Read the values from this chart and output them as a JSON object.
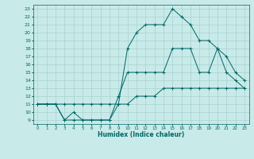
{
  "title": "",
  "xlabel": "Humidex (Indice chaleur)",
  "background_color": "#c8eae8",
  "grid_color": "#a0cccc",
  "line_color": "#006666",
  "xlim": [
    -0.5,
    23.5
  ],
  "ylim": [
    8.5,
    23.5
  ],
  "yticks": [
    9,
    10,
    11,
    12,
    13,
    14,
    15,
    16,
    17,
    18,
    19,
    20,
    21,
    22,
    23
  ],
  "xticks": [
    0,
    1,
    2,
    3,
    4,
    5,
    6,
    7,
    8,
    9,
    10,
    11,
    12,
    13,
    14,
    15,
    16,
    17,
    18,
    19,
    20,
    21,
    22,
    23
  ],
  "line_high_x": [
    0,
    1,
    2,
    3,
    4,
    5,
    6,
    7,
    8,
    9,
    10,
    11,
    12,
    13,
    14,
    15,
    16,
    17,
    18,
    19,
    20,
    21,
    22,
    23
  ],
  "line_high_y": [
    11,
    11,
    11,
    9,
    10,
    9,
    9,
    9,
    9,
    11,
    18,
    20,
    21,
    21,
    21,
    23,
    22,
    21,
    19,
    19,
    18,
    17,
    15,
    14
  ],
  "line_mid_x": [
    0,
    1,
    2,
    3,
    4,
    5,
    6,
    7,
    8,
    9,
    10,
    11,
    12,
    13,
    14,
    15,
    16,
    17,
    18,
    19,
    20,
    21,
    22,
    23
  ],
  "line_mid_y": [
    11,
    11,
    11,
    9,
    9,
    9,
    9,
    9,
    9,
    12,
    15,
    15,
    15,
    15,
    15,
    18,
    18,
    18,
    15,
    15,
    18,
    15,
    14,
    13
  ],
  "line_low_x": [
    0,
    1,
    2,
    3,
    4,
    5,
    6,
    7,
    8,
    9,
    10,
    11,
    12,
    13,
    14,
    15,
    16,
    17,
    18,
    19,
    20,
    21,
    22,
    23
  ],
  "line_low_y": [
    11,
    11,
    11,
    11,
    11,
    11,
    11,
    11,
    11,
    11,
    11,
    12,
    12,
    12,
    13,
    13,
    13,
    13,
    13,
    13,
    13,
    13,
    13,
    13
  ]
}
